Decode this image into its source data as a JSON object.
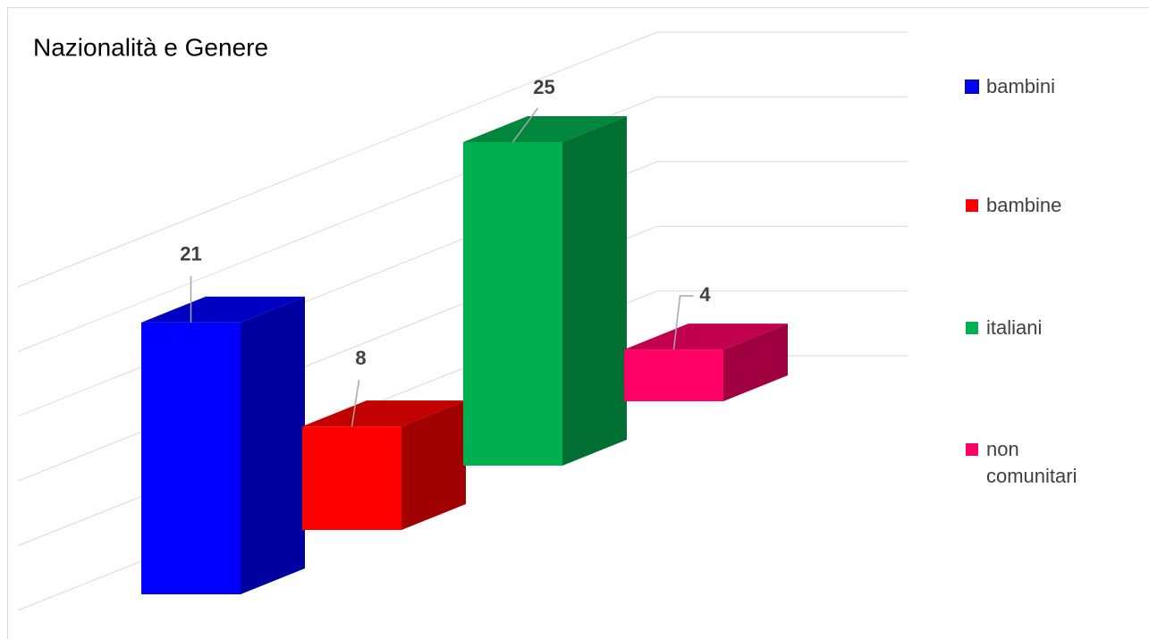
{
  "chart_data": {
    "type": "bar3d",
    "title": "Nazionalità e Genere",
    "series": [
      {
        "name": "bambini",
        "color": "#0000ff",
        "values": [
          21
        ]
      },
      {
        "name": "bambine",
        "color": "#ff0000",
        "values": [
          8
        ]
      },
      {
        "name": "italiani",
        "color": "#00b050",
        "values": [
          25
        ]
      },
      {
        "name": "non comunitari",
        "color": "#ff0066",
        "values": [
          4
        ]
      }
    ],
    "ylim": [
      0,
      25
    ],
    "yticks": [
      0,
      5,
      10,
      15,
      20,
      25
    ],
    "grid": true,
    "legend": "right"
  }
}
